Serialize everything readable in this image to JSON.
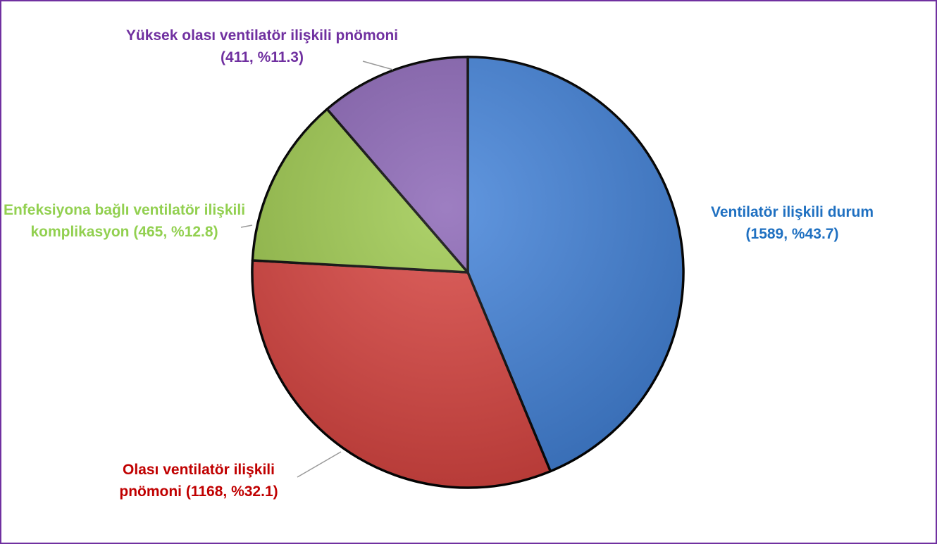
{
  "chart_data": {
    "type": "pie",
    "categories": [
      "Ventilatör ilişkili durum (1589, %43.7)",
      "Olası ventilatör ilişkili pnömoni (1168, %32.1)",
      "Enfeksiyona bağlı ventilatör ilişkili komplikasyon (465, %12.8)",
      "Yüksek olası ventilatör ilişkili pnömoni (411, %11.3)"
    ],
    "values": [
      1589,
      1168,
      465,
      411
    ],
    "colors": [
      "#3f80d8",
      "#d8413d",
      "#9cc84b",
      "#8862b4"
    ],
    "label_colors": [
      "#1f70c1",
      "#c00000",
      "#92d050",
      "#7030a0"
    ]
  }
}
